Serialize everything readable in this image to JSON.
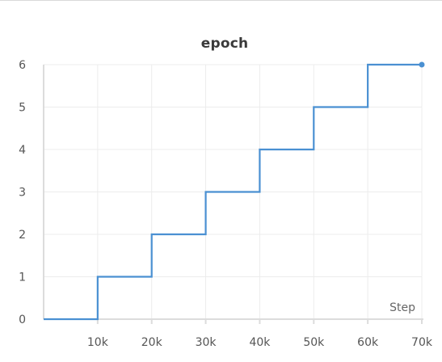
{
  "chart_data": {
    "type": "line",
    "title": "epoch",
    "xlabel": "Step",
    "ylabel": "",
    "xlim": [
      0,
      70000
    ],
    "ylim": [
      0,
      6
    ],
    "x_ticks": [
      10000,
      20000,
      30000,
      40000,
      50000,
      60000,
      70000
    ],
    "x_tick_labels": [
      "10k",
      "20k",
      "30k",
      "40k",
      "50k",
      "60k",
      "70k"
    ],
    "y_ticks": [
      0,
      1,
      2,
      3,
      4,
      5,
      6
    ],
    "y_tick_labels": [
      "0",
      "1",
      "2",
      "3",
      "4",
      "5",
      "6"
    ],
    "grid": true,
    "step_shape": "post",
    "series": [
      {
        "color": "#4a90d2",
        "x": [
          0,
          10000,
          20000,
          30000,
          40000,
          50000,
          60000,
          70000
        ],
        "y": [
          0,
          1,
          2,
          3,
          4,
          5,
          6,
          6
        ],
        "end_marker": true
      }
    ]
  }
}
